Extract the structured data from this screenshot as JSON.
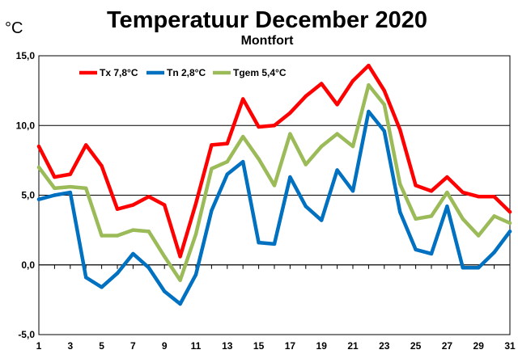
{
  "chart_data": {
    "type": "line",
    "title": "Temperatuur December 2020",
    "subtitle": "Montfort",
    "unit": "°C",
    "x": [
      1,
      2,
      3,
      4,
      5,
      6,
      7,
      8,
      9,
      10,
      11,
      12,
      13,
      14,
      15,
      16,
      17,
      18,
      19,
      20,
      21,
      22,
      23,
      24,
      25,
      26,
      27,
      28,
      29,
      30,
      31
    ],
    "xticks": [
      "1",
      "3",
      "5",
      "7",
      "9",
      "11",
      "13",
      "15",
      "17",
      "19",
      "21",
      "23",
      "25",
      "27",
      "29",
      "31"
    ],
    "yticks": [
      "-5,0",
      "0,0",
      "5,0",
      "10,0",
      "15,0"
    ],
    "ylim": [
      -5,
      15
    ],
    "xlim": [
      1,
      31
    ],
    "grid": true,
    "legend_position": "top-left",
    "series": [
      {
        "name": "Tx 7,8°C",
        "color": "#ff0000",
        "values": [
          8.5,
          6.3,
          6.5,
          8.6,
          7.1,
          4.0,
          4.3,
          4.9,
          4.3,
          0.6,
          4.4,
          8.6,
          8.7,
          11.9,
          9.9,
          10.0,
          10.9,
          12.1,
          13.0,
          11.5,
          13.2,
          14.3,
          12.5,
          9.7,
          5.7,
          5.3,
          6.3,
          5.2,
          4.9,
          4.9,
          3.8
        ]
      },
      {
        "name": "Tn 2,8°C",
        "color": "#0070c0",
        "values": [
          4.7,
          5.0,
          5.2,
          -0.9,
          -1.6,
          -0.6,
          0.8,
          -0.2,
          -1.9,
          -2.8,
          -0.7,
          3.9,
          6.5,
          7.4,
          1.6,
          1.5,
          6.3,
          4.2,
          3.2,
          6.8,
          5.3,
          11.0,
          9.6,
          3.8,
          1.1,
          0.8,
          4.2,
          -0.2,
          -0.2,
          0.9,
          2.4
        ]
      },
      {
        "name": "Tgem 5,4°C",
        "color": "#9bbb59",
        "values": [
          7.0,
          5.5,
          5.6,
          5.5,
          2.1,
          2.1,
          2.5,
          2.4,
          0.6,
          -1.1,
          2.2,
          6.9,
          7.4,
          9.2,
          7.6,
          5.7,
          9.4,
          7.2,
          8.5,
          9.4,
          8.5,
          12.9,
          11.5,
          5.8,
          3.3,
          3.5,
          5.2,
          3.3,
          2.1,
          3.5,
          3.0
        ]
      }
    ]
  }
}
